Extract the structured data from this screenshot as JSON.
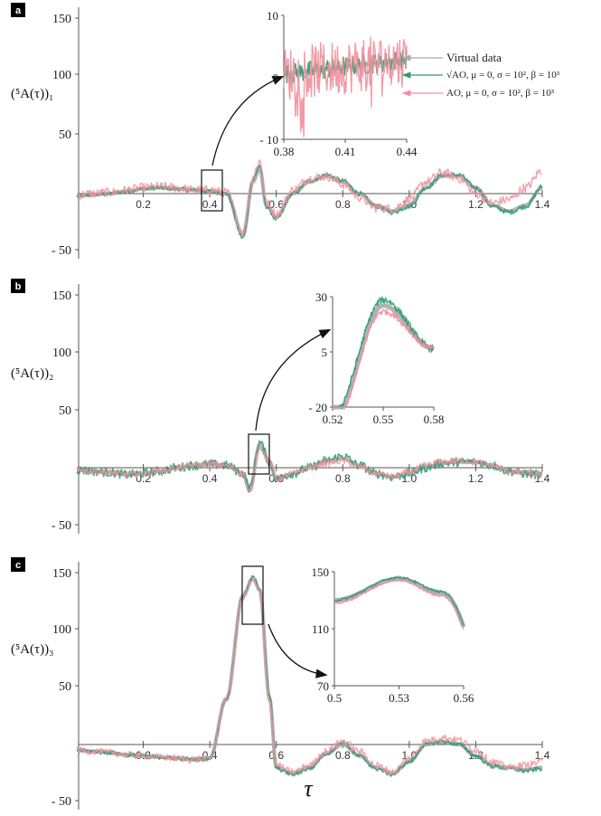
{
  "colors": {
    "virtual": "#aaaaaa",
    "sqrt_ao": "#2e9a76",
    "ao": "#f0909c",
    "axis": "#555555"
  },
  "x_axis_label": "τ",
  "chart_data": [
    {
      "panel": "a",
      "type": "line",
      "ylabel": "(⁵A(τ))₁",
      "xlim": [
        0.0,
        1.4
      ],
      "ylim": [
        -50,
        150
      ],
      "xticks": [
        0.2,
        0.4,
        0.6,
        0.8,
        1.0,
        1.2,
        1.4
      ],
      "xtick_labels": [
        "0.2",
        "0.4",
        "0.6",
        "0.8",
        "1.0",
        "1.2",
        "1.4"
      ],
      "yticks": [
        -50,
        50,
        100,
        150
      ],
      "ytick_labels": [
        "- 50",
        "50",
        "100",
        "150"
      ],
      "x": [
        0.0,
        0.05,
        0.1,
        0.15,
        0.2,
        0.25,
        0.3,
        0.35,
        0.4,
        0.45,
        0.5,
        0.53,
        0.55,
        0.57,
        0.6,
        0.65,
        0.7,
        0.75,
        0.8,
        0.85,
        0.9,
        0.95,
        1.0,
        1.05,
        1.1,
        1.15,
        1.2,
        1.25,
        1.3,
        1.35,
        1.4
      ],
      "series": [
        {
          "name": "Virtual data",
          "values": [
            -2,
            -1,
            0,
            2,
            4,
            5,
            4,
            3,
            2,
            0,
            -35,
            10,
            22,
            -10,
            -20,
            0,
            10,
            15,
            10,
            0,
            -10,
            -15,
            -10,
            5,
            15,
            15,
            5,
            -10,
            -15,
            -10,
            5
          ],
          "noise": 0
        },
        {
          "name": "√AO, μ = 0, σ = 10², β = 10³",
          "values": [
            -2,
            -1,
            0,
            2,
            4,
            5,
            4,
            3,
            2,
            0,
            -38,
            12,
            24,
            -11,
            -22,
            0,
            11,
            16,
            11,
            0,
            -11,
            -16,
            -11,
            5,
            16,
            16,
            5,
            -11,
            -16,
            -11,
            6
          ],
          "noise": 2
        },
        {
          "name": "AO, μ = 0, σ = 10², β = 10³",
          "values": [
            -1,
            0,
            1,
            3,
            5,
            6,
            5,
            3,
            3,
            1,
            -33,
            15,
            28,
            -8,
            -18,
            3,
            13,
            15,
            8,
            -3,
            -12,
            -13,
            -5,
            10,
            18,
            13,
            0,
            -8,
            -5,
            5,
            20
          ],
          "noise": 4
        }
      ],
      "inset": {
        "xlim": [
          0.38,
          0.44
        ],
        "ylim": [
          -10,
          10
        ],
        "xticks": [
          0.38,
          0.41,
          0.44
        ],
        "xtick_labels": [
          "0.38",
          "0.41",
          "0.44"
        ],
        "yticks": [
          -10,
          0,
          10
        ],
        "ytick_labels": [
          "- 10",
          "0",
          "10"
        ],
        "legend": [
          "Virtual data",
          "√AO, μ = 0, σ = 10², β = 10³",
          "AO, μ = 0, σ = 10², β = 10³"
        ]
      }
    },
    {
      "panel": "b",
      "type": "line",
      "ylabel": "(⁵A(τ))₂",
      "xlim": [
        0.0,
        1.4
      ],
      "ylim": [
        -50,
        150
      ],
      "xticks": [
        0.2,
        0.4,
        0.6,
        0.8,
        1.0,
        1.2,
        1.4
      ],
      "xtick_labels": [
        "0.2",
        "0.4",
        "0.6",
        "0.8",
        "1.0",
        "1.2",
        "1.4"
      ],
      "yticks": [
        -50,
        50,
        100,
        150
      ],
      "ytick_labels": [
        "- 50",
        "50",
        "100",
        "150"
      ],
      "x": [
        0.0,
        0.05,
        0.1,
        0.15,
        0.2,
        0.25,
        0.3,
        0.35,
        0.4,
        0.45,
        0.5,
        0.52,
        0.55,
        0.58,
        0.6,
        0.65,
        0.7,
        0.75,
        0.8,
        0.85,
        0.9,
        0.95,
        1.0,
        1.05,
        1.1,
        1.15,
        1.2,
        1.25,
        1.3,
        1.35,
        1.4
      ],
      "series": [
        {
          "name": "Virtual data",
          "values": [
            -2,
            -3,
            -4,
            -6,
            -5,
            -3,
            0,
            2,
            3,
            2,
            -5,
            -20,
            20,
            5,
            -10,
            -5,
            0,
            6,
            8,
            2,
            -5,
            -8,
            -5,
            0,
            4,
            5,
            5,
            2,
            -3,
            -5,
            -6
          ],
          "noise": 0
        },
        {
          "name": "√AO, μ = 0, σ = 10², β = 10³",
          "values": [
            -2,
            -3,
            -4,
            -6,
            -5,
            -3,
            0,
            2,
            3,
            2,
            -5,
            -18,
            22,
            5,
            -10,
            -5,
            0,
            6,
            10,
            2,
            -5,
            -8,
            -5,
            0,
            4,
            5,
            5,
            2,
            -3,
            -5,
            -6
          ],
          "noise": 4
        },
        {
          "name": "AO, μ = 0, σ = 10², β = 10³",
          "values": [
            -2,
            -3,
            -4,
            -6,
            -5,
            -3,
            0,
            2,
            3,
            2,
            -5,
            -22,
            18,
            5,
            -10,
            -5,
            0,
            4,
            6,
            1,
            -5,
            -8,
            -4,
            2,
            5,
            6,
            5,
            2,
            -3,
            -5,
            -6
          ],
          "noise": 3
        }
      ],
      "inset": {
        "xlim": [
          0.52,
          0.58
        ],
        "ylim": [
          -20,
          30
        ],
        "xticks": [
          0.52,
          0.55,
          0.58
        ],
        "xtick_labels": [
          "0.52",
          "0.55",
          "0.58"
        ],
        "yticks": [
          -20,
          5,
          30
        ],
        "ytick_labels": [
          "- 20",
          "5",
          "30"
        ]
      }
    },
    {
      "panel": "c",
      "type": "line",
      "ylabel": "(⁵A(τ))₃",
      "xlim": [
        0.0,
        1.4
      ],
      "ylim": [
        -50,
        150
      ],
      "xticks": [
        0.2,
        0.4,
        0.6,
        0.8,
        1.0,
        1.2,
        1.4
      ],
      "xtick_labels": [
        "0.2",
        "0.4",
        "0.6",
        "0.8",
        "1.0",
        "1.2",
        "1.4"
      ],
      "yticks": [
        -50,
        50,
        100,
        150
      ],
      "ytick_labels": [
        "- 50",
        "50",
        "100",
        "150"
      ],
      "x": [
        0.0,
        0.05,
        0.1,
        0.15,
        0.2,
        0.25,
        0.3,
        0.35,
        0.4,
        0.45,
        0.5,
        0.53,
        0.55,
        0.58,
        0.6,
        0.65,
        0.7,
        0.75,
        0.8,
        0.85,
        0.9,
        0.95,
        1.0,
        1.05,
        1.1,
        1.15,
        1.2,
        1.25,
        1.3,
        1.35,
        1.4
      ],
      "series": [
        {
          "name": "Virtual data",
          "values": [
            -5,
            -6,
            -7,
            -9,
            -10,
            -11,
            -12,
            -13,
            -12,
            40,
            130,
            145,
            135,
            40,
            -20,
            -25,
            -20,
            -8,
            0,
            -10,
            -20,
            -25,
            -15,
            0,
            2,
            0,
            -10,
            -18,
            -20,
            -22,
            -20
          ],
          "noise": 0
        },
        {
          "name": "√AO, μ = 0, σ = 10², β = 10³",
          "values": [
            -5,
            -6,
            -7,
            -9,
            -10,
            -11,
            -12,
            -13,
            -12,
            40,
            130,
            146,
            136,
            42,
            -21,
            -26,
            -21,
            -8,
            2,
            -10,
            -21,
            -26,
            -15,
            0,
            3,
            0,
            -10,
            -19,
            -21,
            -23,
            -21
          ],
          "noise": 2
        },
        {
          "name": "AO, μ = 0, σ = 10², β = 10³",
          "values": [
            -5,
            -6,
            -7,
            -9,
            -10,
            -11,
            -12,
            -13,
            -12,
            40,
            128,
            144,
            133,
            38,
            -18,
            -24,
            -18,
            -6,
            3,
            -6,
            -18,
            -24,
            -12,
            3,
            6,
            4,
            -5,
            -15,
            -20,
            -18,
            -15
          ],
          "noise": 3
        }
      ],
      "inset": {
        "xlim": [
          0.5,
          0.56
        ],
        "ylim": [
          70,
          150
        ],
        "xticks": [
          0.5,
          0.53,
          0.56
        ],
        "xtick_labels": [
          "0.5",
          "0.53",
          "0.56"
        ],
        "yticks": [
          70,
          110,
          150
        ],
        "ytick_labels": [
          "70",
          "110",
          "150"
        ]
      }
    }
  ]
}
